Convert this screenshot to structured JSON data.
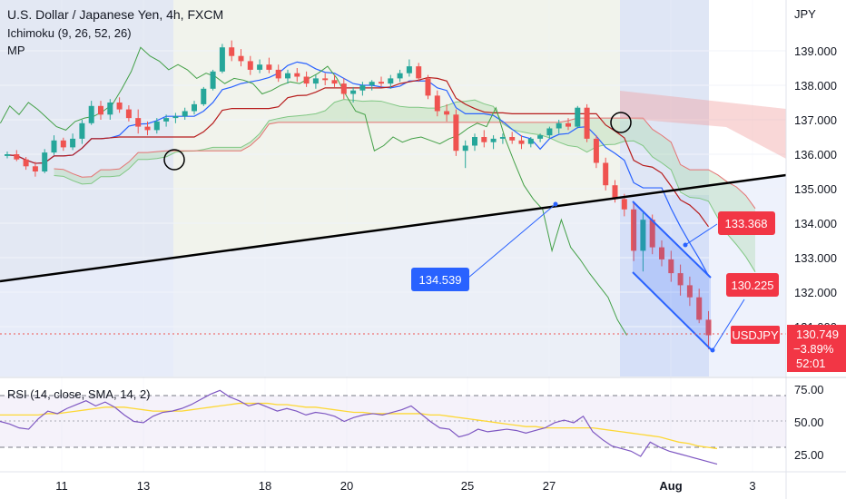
{
  "header": {
    "title": "U.S. Dollar / Japanese Yen, 4h, FXCM",
    "indicator_1": "Ichimoku (9, 26, 52, 26)",
    "indicator_2": "MP"
  },
  "colors": {
    "up": "#26a69a",
    "down": "#ef5350",
    "tenkan": "#2962ff",
    "kijun": "#b71c1c",
    "chikou": "#43a047",
    "cloud_bull": "#a5d6a7",
    "cloud_bear": "#ef9a9a",
    "trendline": "#000000",
    "channel": "#2962ff",
    "rsi": "#7e57c2",
    "rsi_ma": "#fdd835",
    "price_line": "#ef5350"
  },
  "chart_data": {
    "type": "candlestick",
    "symbol": "USDJPY",
    "timeframe": "4h",
    "price_axis": {
      "label": "JPY",
      "ticks": [
        "139.000",
        "138.000",
        "137.000",
        "136.000",
        "135.000",
        "134.000",
        "133.000",
        "132.000",
        "131.000"
      ],
      "range": [
        129.6,
        140.5
      ]
    },
    "time_axis": {
      "ticks": [
        "11",
        "13",
        "18",
        "20",
        "25",
        "27",
        "Aug",
        "3"
      ]
    },
    "candles": [
      [
        135.95,
        136.08,
        135.88,
        136.0
      ],
      [
        136.0,
        136.12,
        135.8,
        135.85
      ],
      [
        135.85,
        135.92,
        135.55,
        135.65
      ],
      [
        135.65,
        135.78,
        135.35,
        135.5
      ],
      [
        135.5,
        136.15,
        135.45,
        136.05
      ],
      [
        136.05,
        136.55,
        135.98,
        136.4
      ],
      [
        136.4,
        136.48,
        136.1,
        136.2
      ],
      [
        136.2,
        136.6,
        136.12,
        136.45
      ],
      [
        136.45,
        137.0,
        136.3,
        136.9
      ],
      [
        136.9,
        137.55,
        136.85,
        137.4
      ],
      [
        137.4,
        137.55,
        137.0,
        137.15
      ],
      [
        137.15,
        137.6,
        137.0,
        137.5
      ],
      [
        137.5,
        137.65,
        137.2,
        137.3
      ],
      [
        137.3,
        137.42,
        136.95,
        137.05
      ],
      [
        137.05,
        137.3,
        136.6,
        136.8
      ],
      [
        136.8,
        136.95,
        136.55,
        136.7
      ],
      [
        136.7,
        137.05,
        136.6,
        136.95
      ],
      [
        136.95,
        137.15,
        136.8,
        137.05
      ],
      [
        137.05,
        137.2,
        136.9,
        137.1
      ],
      [
        137.1,
        137.35,
        137.0,
        137.25
      ],
      [
        137.25,
        137.55,
        137.15,
        137.45
      ],
      [
        137.45,
        137.95,
        137.4,
        137.9
      ],
      [
        137.9,
        138.45,
        137.85,
        138.4
      ],
      [
        138.4,
        139.2,
        138.35,
        139.1
      ],
      [
        139.1,
        139.3,
        138.7,
        138.85
      ],
      [
        138.85,
        139.05,
        138.55,
        138.7
      ],
      [
        138.7,
        138.85,
        138.3,
        138.45
      ],
      [
        138.45,
        138.75,
        138.35,
        138.6
      ],
      [
        138.6,
        138.8,
        138.35,
        138.45
      ],
      [
        138.45,
        138.6,
        138.1,
        138.2
      ],
      [
        138.2,
        138.45,
        138.05,
        138.35
      ],
      [
        138.35,
        138.5,
        138.1,
        138.25
      ],
      [
        138.25,
        138.4,
        137.95,
        138.05
      ],
      [
        138.05,
        138.3,
        137.9,
        138.2
      ],
      [
        138.2,
        138.35,
        138.0,
        138.15
      ],
      [
        138.15,
        138.3,
        137.95,
        138.05
      ],
      [
        138.05,
        138.2,
        137.6,
        137.75
      ],
      [
        137.75,
        137.95,
        137.5,
        137.85
      ],
      [
        137.85,
        138.1,
        137.7,
        138.0
      ],
      [
        138.0,
        138.15,
        137.85,
        138.1
      ],
      [
        138.1,
        138.25,
        137.95,
        138.05
      ],
      [
        138.05,
        138.3,
        137.9,
        138.2
      ],
      [
        138.2,
        138.45,
        138.1,
        138.35
      ],
      [
        138.35,
        138.75,
        138.25,
        138.55
      ],
      [
        138.55,
        138.65,
        138.1,
        138.2
      ],
      [
        138.2,
        138.3,
        137.6,
        137.7
      ],
      [
        137.7,
        137.85,
        137.1,
        137.25
      ],
      [
        137.25,
        137.45,
        136.95,
        137.15
      ],
      [
        137.15,
        137.3,
        135.95,
        136.1
      ],
      [
        136.1,
        136.4,
        135.6,
        136.25
      ],
      [
        136.25,
        136.6,
        136.1,
        136.5
      ],
      [
        136.5,
        136.7,
        136.2,
        136.35
      ],
      [
        136.35,
        136.55,
        136.15,
        136.45
      ],
      [
        136.45,
        136.6,
        136.3,
        136.5
      ],
      [
        136.5,
        136.65,
        136.3,
        136.4
      ],
      [
        136.4,
        136.55,
        136.15,
        136.3
      ],
      [
        136.3,
        136.5,
        136.2,
        136.45
      ],
      [
        136.45,
        136.6,
        136.35,
        136.55
      ],
      [
        136.55,
        136.8,
        136.45,
        136.75
      ],
      [
        136.75,
        137.0,
        136.6,
        136.9
      ],
      [
        136.9,
        137.05,
        136.7,
        136.8
      ],
      [
        136.8,
        137.4,
        136.75,
        137.35
      ],
      [
        137.35,
        137.45,
        136.35,
        136.45
      ],
      [
        136.45,
        136.55,
        135.6,
        135.75
      ],
      [
        135.75,
        135.9,
        134.95,
        135.1
      ],
      [
        135.1,
        135.25,
        134.6,
        134.7
      ],
      [
        134.7,
        134.85,
        134.2,
        134.4
      ],
      [
        134.4,
        134.6,
        132.9,
        133.2
      ],
      [
        133.2,
        134.3,
        132.6,
        134.1
      ],
      [
        134.1,
        134.25,
        133.1,
        133.3
      ],
      [
        133.3,
        133.5,
        132.75,
        132.95
      ],
      [
        132.95,
        133.2,
        132.3,
        132.55
      ],
      [
        132.55,
        132.8,
        131.9,
        132.2
      ],
      [
        132.2,
        132.45,
        131.6,
        131.85
      ],
      [
        131.85,
        132.1,
        131.1,
        131.2
      ],
      [
        131.2,
        131.45,
        130.35,
        130.75
      ]
    ],
    "current_price": "130.749",
    "current_change": "−3.89%",
    "countdown": "52:01",
    "symbol_tag": "USDJPY",
    "annotations": [
      {
        "text": "134.539",
        "price": 134.539
      },
      {
        "text": "133.368",
        "price": 133.368
      },
      {
        "text": "130.225",
        "price": 130.225
      }
    ],
    "rsi": {
      "label": "RSI (14, close, SMA, 14, 2)",
      "ticks": [
        "75.00",
        "50.00",
        "25.00"
      ],
      "levels": [
        70,
        50,
        30
      ],
      "values": [
        50,
        48,
        45,
        44,
        52,
        58,
        56,
        60,
        63,
        66,
        62,
        65,
        61,
        55,
        50,
        49,
        54,
        57,
        58,
        60,
        63,
        67,
        71,
        74,
        69,
        66,
        62,
        64,
        61,
        58,
        60,
        58,
        55,
        57,
        56,
        54,
        50,
        53,
        55,
        56,
        55,
        57,
        59,
        62,
        56,
        50,
        45,
        44,
        38,
        40,
        44,
        42,
        43,
        44,
        43,
        41,
        43,
        45,
        49,
        51,
        49,
        54,
        42,
        36,
        31,
        29,
        27,
        23,
        34,
        30,
        27,
        25,
        23,
        21,
        19,
        17
      ],
      "ma_values": [
        55,
        55,
        55,
        55,
        55,
        56,
        56,
        57,
        58,
        59,
        60,
        61,
        61,
        61,
        60,
        59,
        58,
        58,
        58,
        58,
        59,
        60,
        61,
        62,
        63,
        64,
        64,
        64,
        64,
        63,
        63,
        62,
        61,
        61,
        60,
        59,
        58,
        57,
        57,
        56,
        56,
        56,
        56,
        56,
        56,
        55,
        55,
        54,
        53,
        52,
        51,
        50,
        49,
        48,
        47,
        46,
        46,
        45,
        45,
        45,
        45,
        45,
        45,
        44,
        43,
        42,
        41,
        40,
        39,
        38,
        36,
        34,
        33,
        31,
        30,
        29
      ]
    }
  }
}
